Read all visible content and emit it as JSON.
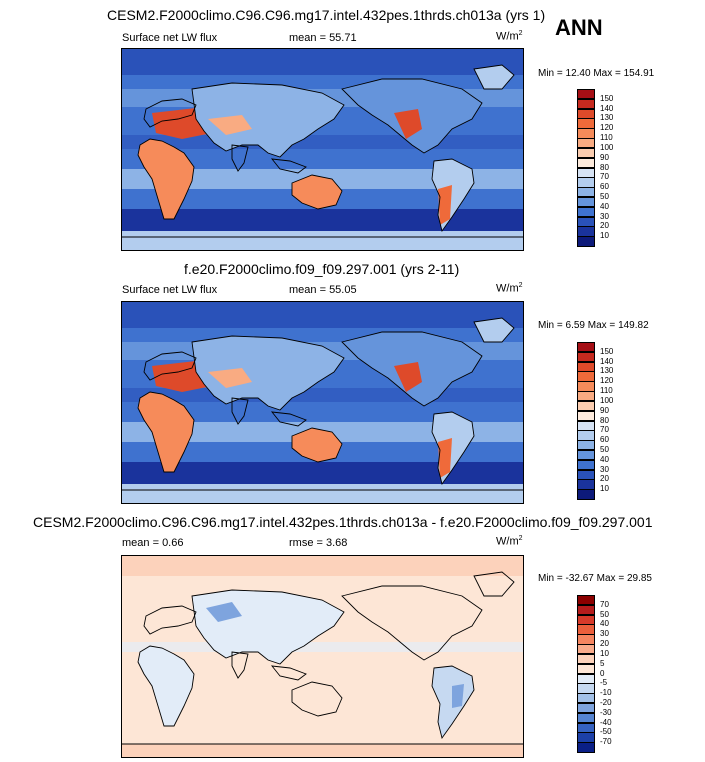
{
  "ann_label": "ANN",
  "panels": [
    {
      "title": "CESM2.F2000climo.C96.C96.mg17.intel.432pes.1thrds.ch013a (yrs 1)",
      "left_label": "Surface net LW flux",
      "stat1_label": "mean =",
      "stat1_value": "55.71",
      "stat2_label": "",
      "stat2_value": "",
      "units": "W/m",
      "units_sup": "2",
      "min_label": "Min =",
      "min_value": "12.40",
      "max_label": "Max =",
      "max_value": "154.91",
      "colorbar": [
        "150",
        "140",
        "130",
        "120",
        "110",
        "100",
        "90",
        "80",
        "70",
        "60",
        "50",
        "40",
        "30",
        "20",
        "10"
      ]
    },
    {
      "title": "f.e20.F2000climo.f09_f09.297.001 (yrs 2-11)",
      "left_label": "Surface net LW flux",
      "stat1_label": "mean =",
      "stat1_value": "55.05",
      "stat2_label": "",
      "stat2_value": "",
      "units": "W/m",
      "units_sup": "2",
      "min_label": "Min =",
      "min_value": "6.59",
      "max_label": "Max =",
      "max_value": "149.82",
      "colorbar": [
        "150",
        "140",
        "130",
        "120",
        "110",
        "100",
        "90",
        "80",
        "70",
        "60",
        "50",
        "40",
        "30",
        "20",
        "10"
      ]
    },
    {
      "title": "CESM2.F2000climo.C96.C96.mg17.intel.432pes.1thrds.ch013a - f.e20.F2000climo.f09_f09.297.001",
      "left_label": "mean =",
      "left_value": "0.66",
      "stat1_label": "rmse =",
      "stat1_value": "3.68",
      "units": "W/m",
      "units_sup": "2",
      "min_label": "Min =",
      "min_value": "-32.67",
      "max_label": "Max =",
      "max_value": "29.85",
      "colorbar": [
        "70",
        "50",
        "40",
        "30",
        "20",
        "10",
        "5",
        "0",
        "-5",
        "-10",
        "-20",
        "-30",
        "-40",
        "-50",
        "-70"
      ]
    }
  ],
  "colors": {
    "abs_scale": [
      "#a50f15",
      "#c62a1f",
      "#de4a2a",
      "#ef6a3a",
      "#f68b5a",
      "#f9ab82",
      "#fbcdb0",
      "#fdebdd",
      "#d6e3f4",
      "#b3cdee",
      "#8db3e6",
      "#6594db",
      "#3f72cf",
      "#2a52b9",
      "#1a339c",
      "#0d1a7a"
    ],
    "diff_scale": [
      "#8b0000",
      "#b51c1c",
      "#d73a2a",
      "#eb5f3c",
      "#f58560",
      "#f9ab8b",
      "#fcd2bb",
      "#fde6d6",
      "#e2ecf8",
      "#c6d9f1",
      "#a3c1e8",
      "#7ea4de",
      "#5584d1",
      "#3562c1",
      "#1c40a8",
      "#0a1f87"
    ]
  }
}
